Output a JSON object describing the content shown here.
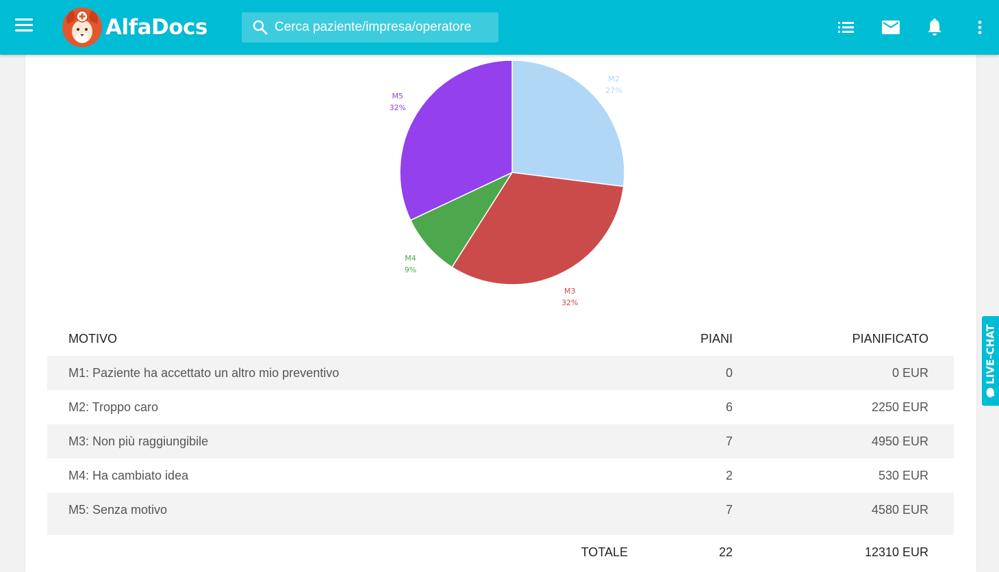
{
  "app": {
    "name": "AlfaDocs",
    "brand_color": "#00bcd4"
  },
  "header": {
    "menu_icon": "menu-icon",
    "search_placeholder": "Cerca paziente/impresa/operatore",
    "icons": [
      "list-icon",
      "mail-icon",
      "bell-icon",
      "more-vert-icon"
    ]
  },
  "chart_data": {
    "type": "pie",
    "slices": [
      {
        "label": "M2",
        "pct_label": "27%",
        "value": 27,
        "color": "#b1d7f6"
      },
      {
        "label": "M3",
        "pct_label": "32%",
        "value": 32,
        "color": "#cb4b4b"
      },
      {
        "label": "M4",
        "pct_label": "9%",
        "value": 9,
        "color": "#4da74d"
      },
      {
        "label": "M5",
        "pct_label": "32%",
        "value": 32,
        "color": "#9440ed"
      }
    ]
  },
  "table": {
    "headers": {
      "motivo": "MOTIVO",
      "piani": "PIANI",
      "pianificato": "PIANIFICATO"
    },
    "rows": [
      {
        "motivo": "M1: Paziente ha accettato un altro mio preventivo",
        "piani": "0",
        "pianificato": "0 EUR"
      },
      {
        "motivo": "M2: Troppo caro",
        "piani": "6",
        "pianificato": "2250 EUR"
      },
      {
        "motivo": "M3: Non più raggiungibile",
        "piani": "7",
        "pianificato": "4950 EUR"
      },
      {
        "motivo": "M4: Ha cambiato idea",
        "piani": "2",
        "pianificato": "530 EUR"
      },
      {
        "motivo": "M5: Senza motivo",
        "piani": "7",
        "pianificato": "4580 EUR"
      }
    ],
    "total": {
      "label": "TOTALE",
      "piani": "22",
      "pianificato": "12310 EUR"
    }
  },
  "livechat": {
    "label": "LIVE-CHAT"
  }
}
